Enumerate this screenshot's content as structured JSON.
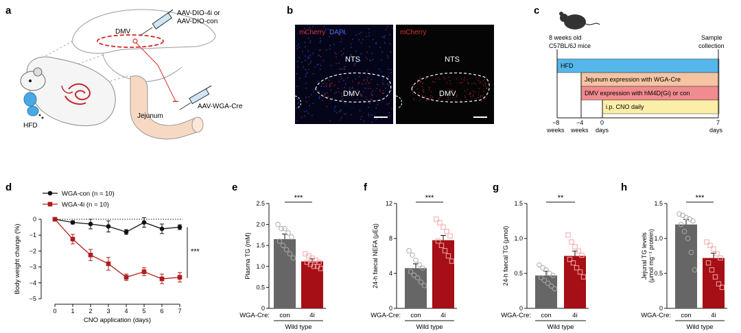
{
  "panels": {
    "a": "a",
    "b": "b",
    "c": "c",
    "d": "d",
    "e": "e",
    "f": "f",
    "g": "g",
    "h": "h"
  },
  "panel_a": {
    "injection_top": "AAV-DIO-4i or",
    "injection_top2": "AAV-DIO-con",
    "dmv": "DMV",
    "jejunum": "Jejunum",
    "injection_gut": "AAV-WGA-Cre",
    "hfd": "HFD"
  },
  "panel_b": {
    "left_label_red": "mCherry",
    "left_label_blue": "DAPI",
    "right_label_red": "mCherry",
    "nts": "NTS",
    "dmv": "DMV"
  },
  "panel_c": {
    "mouse_line1": "8 weeks old",
    "mouse_line2": "C57BL/6J mice",
    "sample_line1": "Sample",
    "sample_line2": "collection",
    "bar_hfd": "HFD",
    "bar_jejunum": "Jejunum expression with WGA-Cre",
    "bar_dmv": "DMV expression with hM4D(Gi) or con",
    "bar_cno": "i.p. CNO daily",
    "ticks": [
      "−8",
      "−4",
      "0",
      "7"
    ],
    "tick_units": [
      "weeks",
      "weeks",
      "days",
      "days"
    ],
    "colors": {
      "hfd": "#55b6ea",
      "jejunum": "#f6c4a3",
      "dmv": "#f08b8f",
      "cno": "#fbeea6"
    }
  },
  "chart_data": [
    {
      "panel": "d",
      "type": "line",
      "xlabel": "CNO application (days)",
      "ylabel": "Body weight change (%)",
      "x": [
        0,
        1,
        2,
        3,
        4,
        5,
        6,
        7
      ],
      "xlim": [
        0,
        7
      ],
      "ylim": [
        -5,
        0
      ],
      "yticks": [
        0,
        -1,
        -2,
        -3,
        -4,
        -5
      ],
      "series": [
        {
          "name": "WGA-con",
          "n_label": "n = 10",
          "color": "#111111",
          "marker": "circle",
          "values": [
            0,
            -0.2,
            -0.3,
            -0.45,
            -0.8,
            -0.2,
            -0.6,
            -0.5
          ],
          "errors": [
            0.05,
            0.1,
            0.3,
            0.35,
            0.15,
            0.3,
            0.3,
            0.15
          ]
        },
        {
          "name": "WGA-4i",
          "n_label": "n = 10",
          "color": "#b01b1b",
          "marker": "square",
          "values": [
            0,
            -1.25,
            -2.25,
            -2.8,
            -3.65,
            -3.3,
            -3.75,
            -3.65
          ],
          "errors": [
            0.05,
            0.3,
            0.35,
            0.4,
            0.2,
            0.25,
            0.3,
            0.3
          ]
        }
      ],
      "significance": "***"
    },
    {
      "panel": "e",
      "type": "bar",
      "ylabel": "Plasma TG (mM)",
      "ylim": [
        0,
        2.5
      ],
      "yticks": [
        "0",
        "0.5",
        "1.0",
        "1.5",
        "2.0",
        "2.5"
      ],
      "ytick_values": [
        0,
        0.5,
        1.0,
        1.5,
        2.0,
        2.5
      ],
      "categories": [
        "con",
        "4i"
      ],
      "values": [
        1.65,
        1.12
      ],
      "errors": [
        0.12,
        0.06
      ],
      "points": [
        [
          2.0,
          1.9,
          1.9,
          1.8,
          1.7,
          1.6,
          1.5,
          1.4,
          1.3,
          1.2
        ],
        [
          1.3,
          1.25,
          1.2,
          1.15,
          1.1,
          1.1,
          1.05,
          1.0,
          1.0,
          0.95
        ]
      ],
      "significance": "***"
    },
    {
      "panel": "f",
      "type": "bar",
      "ylabel": "24-h faecal NEFA (μEq)",
      "ylim": [
        0,
        12
      ],
      "yticks": [
        "0",
        "4",
        "8",
        "12"
      ],
      "ytick_values": [
        0,
        4,
        8,
        12
      ],
      "categories": [
        "con",
        "4i"
      ],
      "values": [
        4.6,
        7.8
      ],
      "errors": [
        0.5,
        0.55
      ],
      "points": [
        [
          6.6,
          6.1,
          5.5,
          5.0,
          4.6,
          4.2,
          3.8,
          3.5,
          3.0,
          2.6
        ],
        [
          10.2,
          9.8,
          9.3,
          8.8,
          8.3,
          7.7,
          7.2,
          6.6,
          6.0,
          5.4
        ]
      ],
      "significance": "***"
    },
    {
      "panel": "g",
      "type": "bar",
      "ylabel": "24-h faecal TG (μmol)",
      "ylim": [
        0,
        1.5
      ],
      "yticks": [
        "0",
        "0.5",
        "1.0",
        "1.5"
      ],
      "ytick_values": [
        0,
        0.5,
        1.0,
        1.5
      ],
      "categories": [
        "con",
        "4i"
      ],
      "values": [
        0.47,
        0.75
      ],
      "errors": [
        0.06,
        0.07
      ],
      "points": [
        [
          0.62,
          0.58,
          0.55,
          0.5,
          0.47,
          0.44,
          0.4,
          0.36,
          0.32,
          0.28
        ],
        [
          1.05,
          0.95,
          0.88,
          0.82,
          0.76,
          0.7,
          0.65,
          0.58,
          0.52,
          0.45
        ]
      ],
      "significance": "**"
    },
    {
      "panel": "h",
      "type": "bar",
      "ylabel": "Jejunal TG levels",
      "ylabel2": "(μmol mg⁻¹ protein)",
      "ylim": [
        0,
        1.5
      ],
      "yticks": [
        "0",
        "0.5",
        "1.0",
        "1.5"
      ],
      "ytick_values": [
        0,
        0.5,
        1.0,
        1.5
      ],
      "categories": [
        "con",
        "4i"
      ],
      "values": [
        1.2,
        0.72
      ],
      "errors": [
        0.07,
        0.07
      ],
      "points": [
        [
          1.35,
          1.33,
          1.3,
          1.28,
          1.25,
          1.2,
          1.1,
          1.0,
          0.8,
          0.55
        ],
        [
          0.95,
          0.9,
          0.85,
          0.78,
          0.72,
          0.65,
          0.55,
          0.45,
          0.35,
          0.3
        ]
      ],
      "significance": "***"
    }
  ],
  "bar_common": {
    "group_label": "WGA-Cre:",
    "genotype": "Wild type",
    "colors": {
      "con": "#666666",
      "4i": "#a50f15",
      "con_point": "#aaaaaa",
      "4i_point": "#f4a6a8"
    }
  }
}
